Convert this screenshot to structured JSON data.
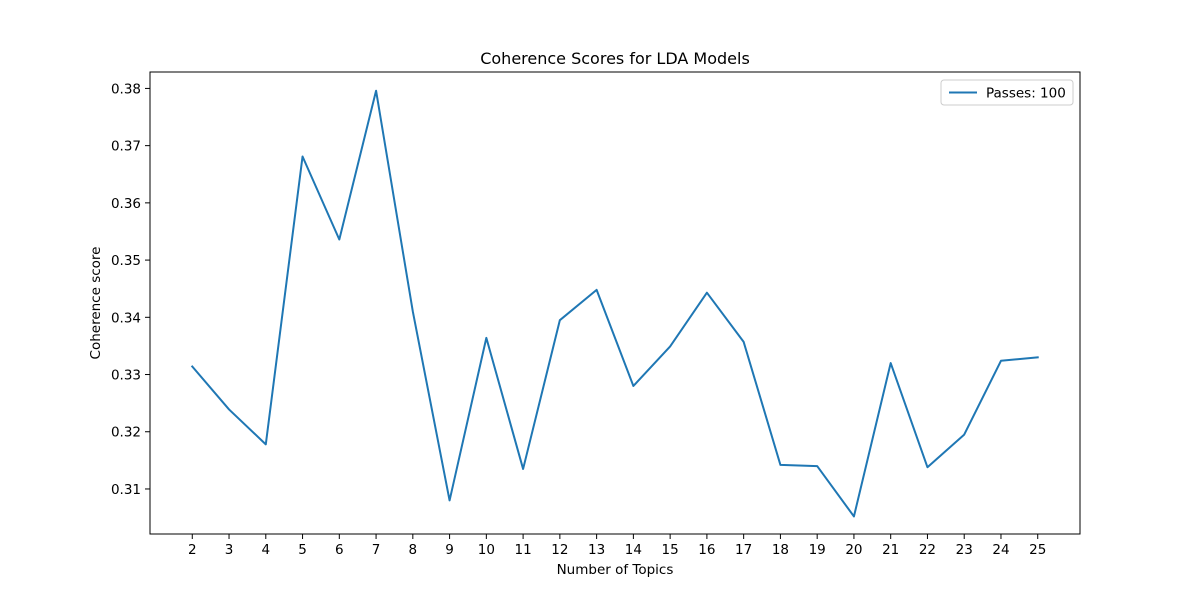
{
  "chart_data": {
    "type": "line",
    "title": "Coherence Scores for LDA Models",
    "xlabel": "Number of Topics",
    "ylabel": "Coherence score",
    "x": [
      2,
      3,
      4,
      5,
      6,
      7,
      8,
      9,
      10,
      11,
      12,
      13,
      14,
      15,
      16,
      17,
      18,
      19,
      20,
      21,
      22,
      23,
      24,
      25
    ],
    "series": [
      {
        "name": "Passes: 100",
        "color": "#1f77b4",
        "values": [
          0.3314,
          0.3239,
          0.3178,
          0.3681,
          0.3536,
          0.3796,
          0.341,
          0.308,
          0.3364,
          0.3135,
          0.3395,
          0.3448,
          0.328,
          0.3349,
          0.3443,
          0.3357,
          0.3142,
          0.314,
          0.3052,
          0.332,
          0.3138,
          0.3195,
          0.3324,
          0.333
        ]
      }
    ],
    "xticks": [
      2,
      3,
      4,
      5,
      6,
      7,
      8,
      9,
      10,
      11,
      12,
      13,
      14,
      15,
      16,
      17,
      18,
      19,
      20,
      21,
      22,
      23,
      24,
      25
    ],
    "yticks": [
      0.31,
      0.32,
      0.33,
      0.34,
      0.35,
      0.36,
      0.37,
      0.38
    ],
    "ytick_labels": [
      "0.31",
      "0.32",
      "0.33",
      "0.34",
      "0.35",
      "0.36",
      "0.37",
      "0.38"
    ],
    "xlim": [
      0.85,
      26.15
    ],
    "ylim": [
      0.30213,
      0.38287
    ],
    "grid": false,
    "legend_position": "top-right"
  }
}
